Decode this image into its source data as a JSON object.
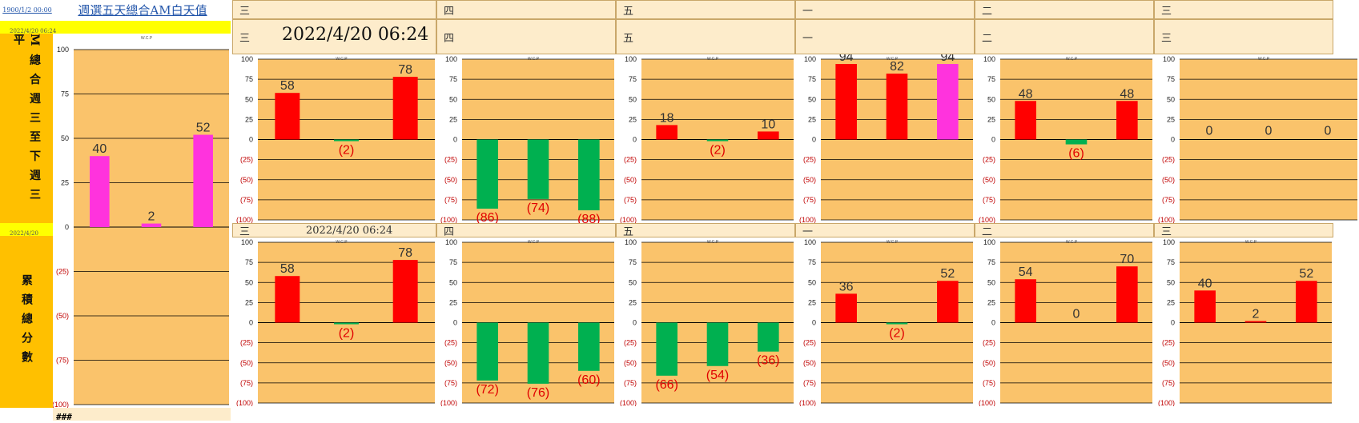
{
  "top_link": "1900/1/2 00:00",
  "title": "週選五天總合AM白天值",
  "timestamp_small_1": "2022/4/20 06:24",
  "timestamp_small_2": "2022/4/20 06:24",
  "section_labels": {
    "weekly": "M總合週三至下週三平",
    "cumulative": "累積總分數"
  },
  "footer": "###",
  "big_timestamp": "2022/4/20 06:24",
  "overlap_timestamp": "2022/4/20 06:24",
  "day_headers_row1": [
    "三",
    "四",
    "五",
    "一",
    "二",
    "三"
  ],
  "day_headers_row2": [
    "三",
    "四",
    "五",
    "一",
    "二",
    "三"
  ],
  "day_headers_row3": [
    "三",
    "四",
    "五",
    "一",
    "二",
    "三"
  ],
  "chart_title": "W.C.P",
  "colors": {
    "positive": "#ff0000",
    "negative": "#00b050",
    "magenta": "#ff33dd",
    "plot_bg": "#fac36b",
    "side_yellow": "#ffff00",
    "side_orange": "#ffc000"
  },
  "chart_data": [
    {
      "id": "left-big",
      "type": "bar",
      "title": "W.C.P",
      "ylim": [
        -100,
        100
      ],
      "values": [
        40,
        2,
        52
      ],
      "labels": [
        "40",
        "2",
        "52"
      ],
      "colors": [
        "#ff33dd",
        "#ff33dd",
        "#ff33dd"
      ]
    },
    {
      "id": "r1c1",
      "type": "bar",
      "title": "W.C.P",
      "ylim": [
        -100,
        100
      ],
      "values": [
        58,
        -2,
        78
      ],
      "labels": [
        "58",
        "(2)",
        "78"
      ]
    },
    {
      "id": "r1c2",
      "type": "bar",
      "title": "W.C.P",
      "ylim": [
        -100,
        100
      ],
      "values": [
        -86,
        -74,
        -88
      ],
      "labels": [
        "(86)",
        "(74)",
        "(88)"
      ]
    },
    {
      "id": "r1c3",
      "type": "bar",
      "title": "W.C.P",
      "ylim": [
        -100,
        100
      ],
      "values": [
        18,
        -2,
        10
      ],
      "labels": [
        "18",
        "(2)",
        "10"
      ]
    },
    {
      "id": "r1c4",
      "type": "bar",
      "title": "W.C.P",
      "ylim": [
        -100,
        100
      ],
      "values": [
        94,
        82,
        94
      ],
      "labels": [
        "94",
        "82",
        "94"
      ],
      "colors": [
        "#ff0000",
        "#ff0000",
        "#ff33dd"
      ]
    },
    {
      "id": "r1c5",
      "type": "bar",
      "title": "W.C.P",
      "ylim": [
        -100,
        100
      ],
      "values": [
        48,
        -6,
        48
      ],
      "labels": [
        "48",
        "(6)",
        "48"
      ]
    },
    {
      "id": "r1c6",
      "type": "bar",
      "title": "W.C.P",
      "ylim": [
        -100,
        100
      ],
      "values": [
        0,
        0,
        0
      ],
      "labels": [
        "0",
        "0",
        "0"
      ]
    },
    {
      "id": "r2c1",
      "type": "bar",
      "title": "W.C.P",
      "ylim": [
        -100,
        100
      ],
      "values": [
        58,
        -2,
        78
      ],
      "labels": [
        "58",
        "(2)",
        "78"
      ]
    },
    {
      "id": "r2c2",
      "type": "bar",
      "title": "W.C.P",
      "ylim": [
        -100,
        100
      ],
      "values": [
        -72,
        -76,
        -60
      ],
      "labels": [
        "(72)",
        "(76)",
        "(60)"
      ]
    },
    {
      "id": "r2c3",
      "type": "bar",
      "title": "W.C.P",
      "ylim": [
        -100,
        100
      ],
      "values": [
        -66,
        -54,
        -36
      ],
      "labels": [
        "(66)",
        "(54)",
        "(36)"
      ]
    },
    {
      "id": "r2c4",
      "type": "bar",
      "title": "W.C.P",
      "ylim": [
        -100,
        100
      ],
      "values": [
        36,
        -2,
        52
      ],
      "labels": [
        "36",
        "(2)",
        "52"
      ]
    },
    {
      "id": "r2c5",
      "type": "bar",
      "title": "W.C.P",
      "ylim": [
        -100,
        100
      ],
      "values": [
        54,
        0,
        70
      ],
      "labels": [
        "54",
        "0",
        "70"
      ]
    },
    {
      "id": "r2c6",
      "type": "bar",
      "title": "W.C.P",
      "ylim": [
        -100,
        100
      ],
      "values": [
        40,
        2,
        52
      ],
      "labels": [
        "40",
        "2",
        "52"
      ]
    }
  ]
}
